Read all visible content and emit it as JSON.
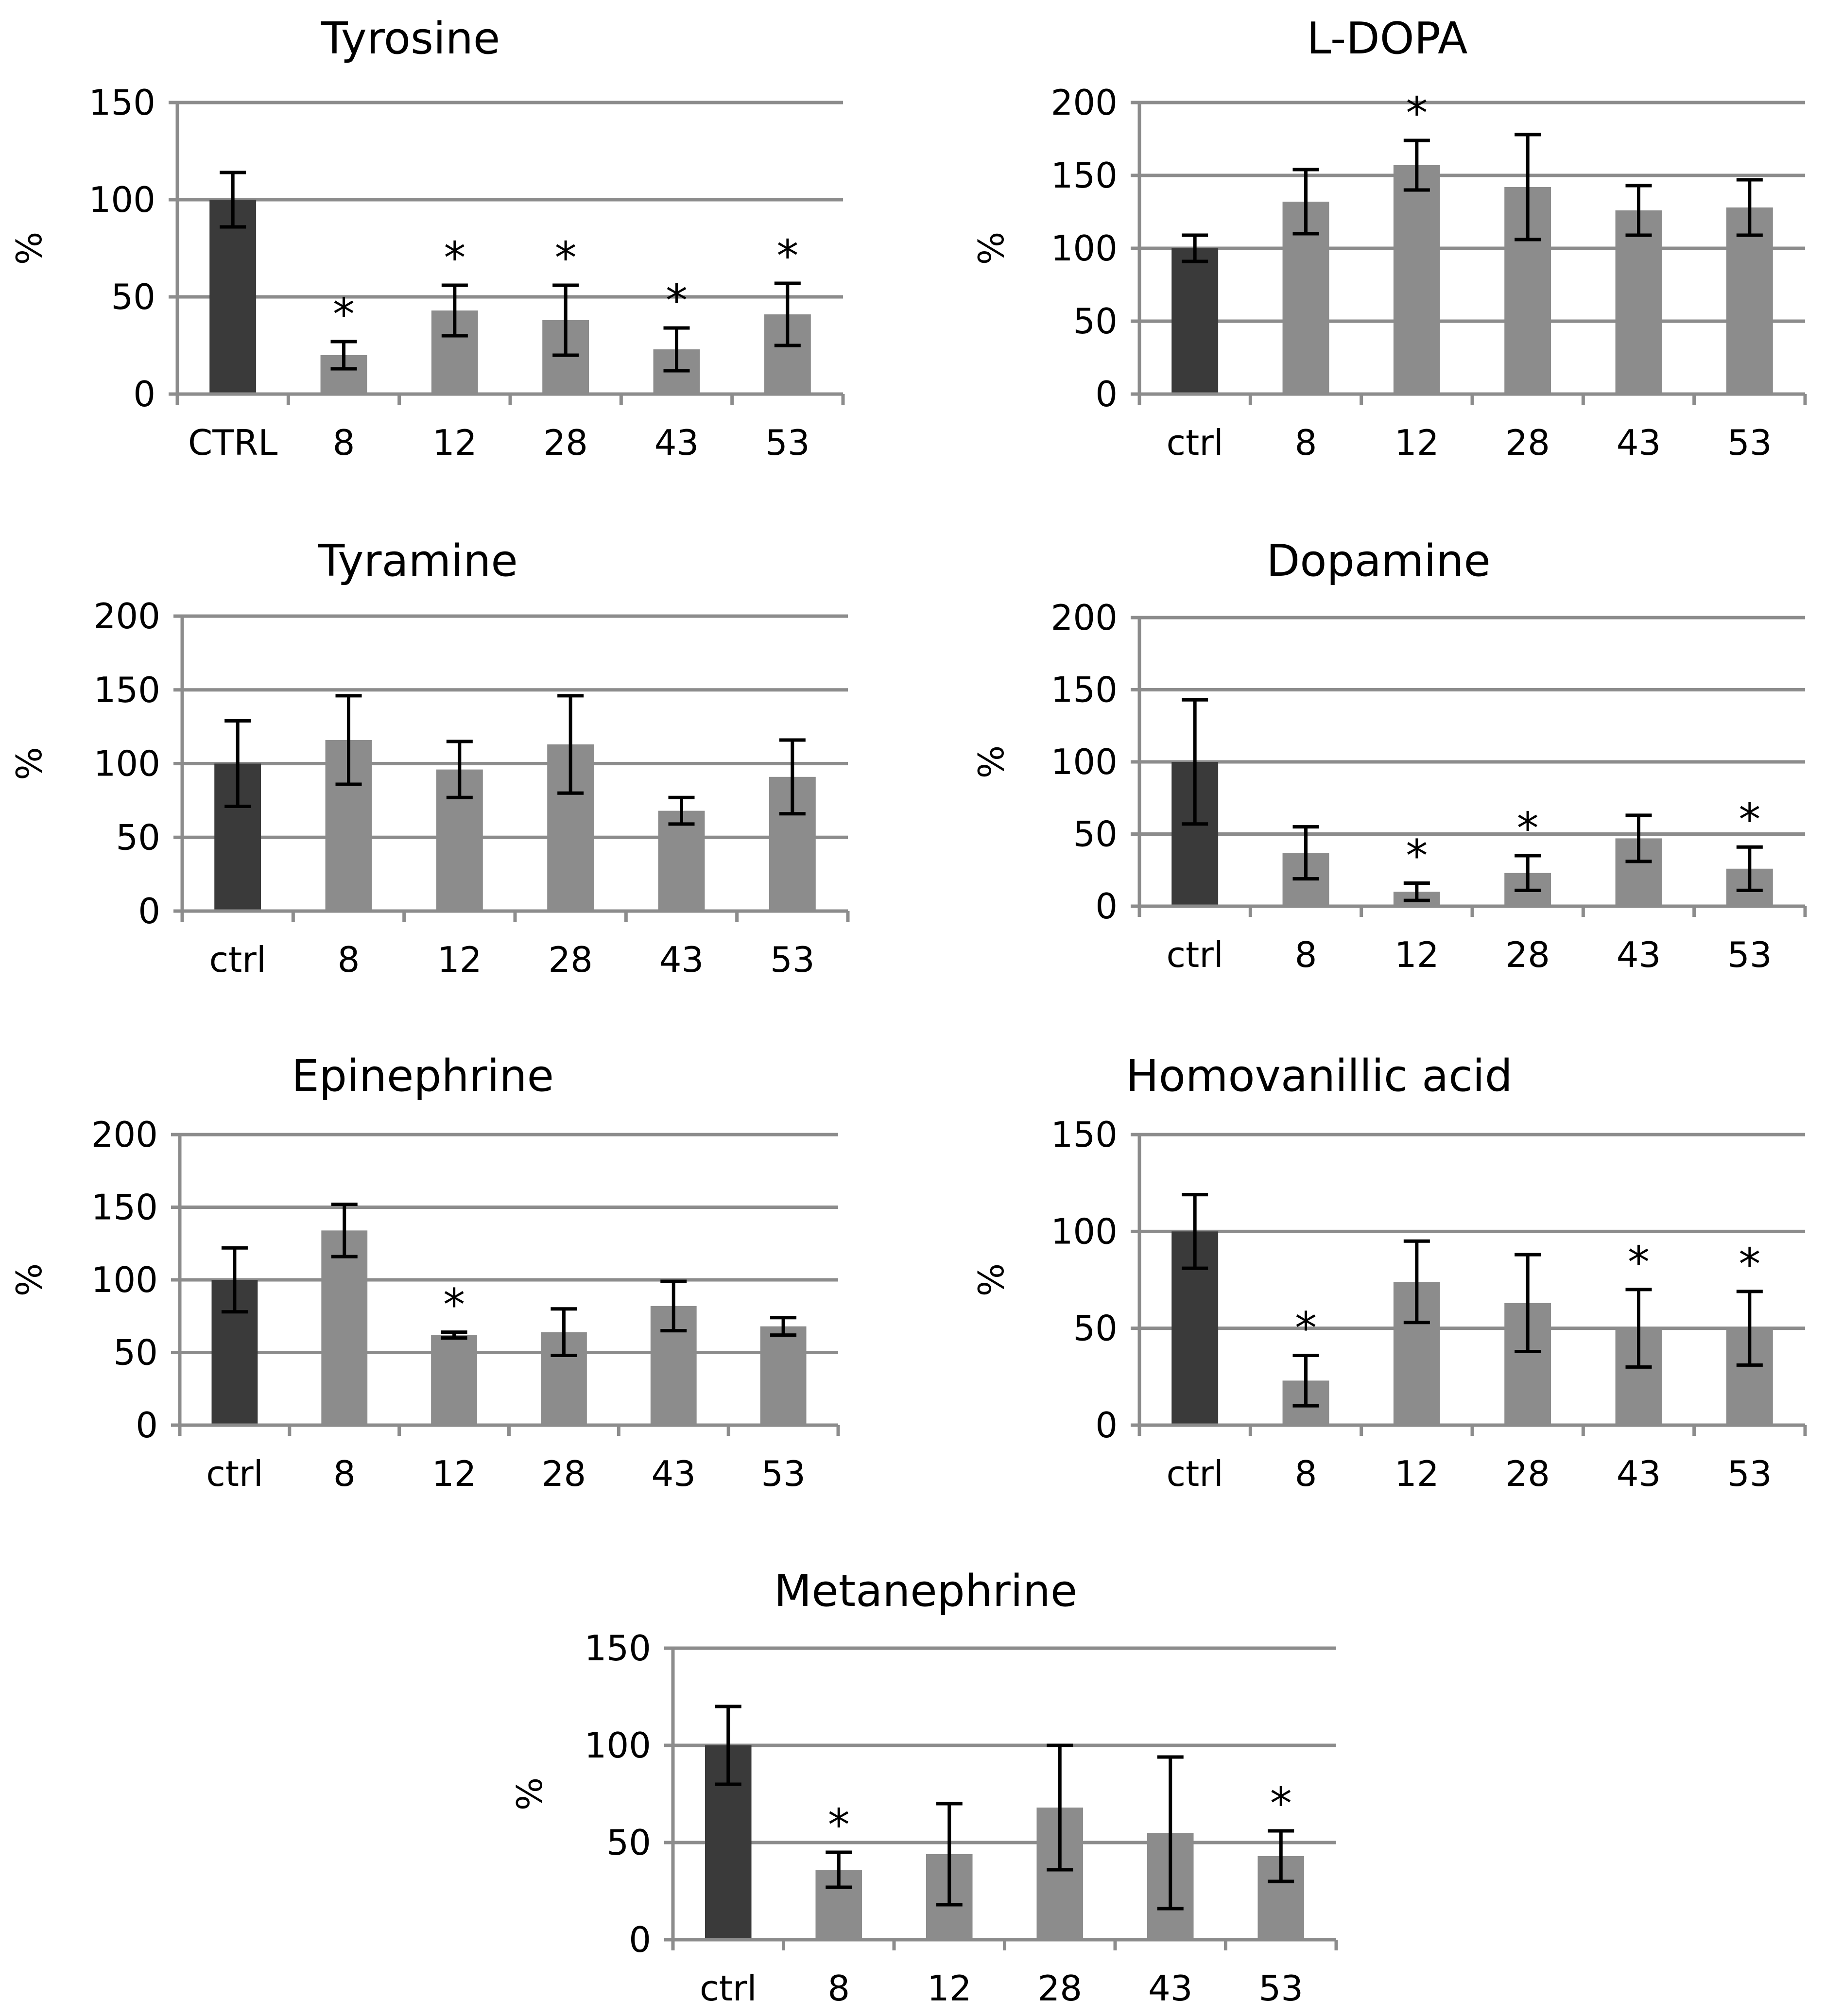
{
  "colors": {
    "control_bar": "#3a3a3a",
    "treatment_bar": "#8c8c8c",
    "gridline": "#8c8c8c",
    "error_bar": "#000000",
    "background": "#ffffff"
  },
  "chart_data": [
    {
      "type": "bar",
      "title": "Tyrosine",
      "ylabel": "%",
      "xlabel": "",
      "ylim": [
        0,
        150
      ],
      "yticks": [
        0,
        50,
        100,
        150
      ],
      "categories": [
        "CTRL",
        "8",
        "12",
        "28",
        "43",
        "53"
      ],
      "values": [
        100,
        20,
        43,
        38,
        23,
        41
      ],
      "errors": [
        14,
        7,
        13,
        18,
        11,
        16
      ],
      "significance": [
        "",
        "*",
        "*",
        "*",
        "*",
        "*"
      ]
    },
    {
      "type": "bar",
      "title": "L-DOPA",
      "ylabel": "%",
      "xlabel": "",
      "ylim": [
        0,
        200
      ],
      "yticks": [
        0,
        50,
        100,
        150,
        200
      ],
      "categories": [
        "ctrl",
        "8",
        "12",
        "28",
        "43",
        "53"
      ],
      "values": [
        100,
        132,
        157,
        142,
        126,
        128
      ],
      "errors": [
        9,
        22,
        17,
        36,
        17,
        19
      ],
      "significance": [
        "",
        "",
        "*",
        "",
        "",
        ""
      ]
    },
    {
      "type": "bar",
      "title": "Tyramine",
      "ylabel": "%",
      "xlabel": "",
      "ylim": [
        0,
        200
      ],
      "yticks": [
        0,
        50,
        100,
        150,
        200
      ],
      "categories": [
        "ctrl",
        "8",
        "12",
        "28",
        "43",
        "53"
      ],
      "values": [
        100,
        116,
        96,
        113,
        68,
        91
      ],
      "errors": [
        29,
        30,
        19,
        33,
        9,
        25
      ],
      "significance": [
        "",
        "",
        "",
        "",
        "",
        ""
      ]
    },
    {
      "type": "bar",
      "title": "Dopamine",
      "ylabel": "%",
      "xlabel": "",
      "ylim": [
        0,
        200
      ],
      "yticks": [
        0,
        50,
        100,
        150,
        200
      ],
      "categories": [
        "ctrl",
        "8",
        "12",
        "28",
        "43",
        "53"
      ],
      "values": [
        100,
        37,
        10,
        23,
        47,
        26
      ],
      "errors": [
        43,
        18,
        6,
        12,
        16,
        15
      ],
      "significance": [
        "",
        "",
        "*",
        "*",
        "",
        "*"
      ]
    },
    {
      "type": "bar",
      "title": "Epinephrine",
      "ylabel": "%",
      "xlabel": "",
      "ylim": [
        0,
        200
      ],
      "yticks": [
        0,
        50,
        100,
        150,
        200
      ],
      "categories": [
        "ctrl",
        "8",
        "12",
        "28",
        "43",
        "53"
      ],
      "values": [
        100,
        134,
        62,
        64,
        82,
        68
      ],
      "errors": [
        22,
        18,
        2,
        16,
        17,
        6
      ],
      "significance": [
        "",
        "",
        "*",
        "",
        "",
        ""
      ]
    },
    {
      "type": "bar",
      "title": "Homovanillic acid",
      "ylabel": "%",
      "xlabel": "",
      "ylim": [
        0,
        150
      ],
      "yticks": [
        0,
        50,
        100,
        150
      ],
      "categories": [
        "ctrl",
        "8",
        "12",
        "28",
        "43",
        "53"
      ],
      "values": [
        100,
        23,
        74,
        63,
        50,
        50
      ],
      "errors": [
        19,
        13,
        21,
        25,
        20,
        19
      ],
      "significance": [
        "",
        "*",
        "",
        "",
        "*",
        "*"
      ]
    },
    {
      "type": "bar",
      "title": "Metanephrine",
      "ylabel": "%",
      "xlabel": "",
      "ylim": [
        0,
        150
      ],
      "yticks": [
        0,
        50,
        100,
        150
      ],
      "categories": [
        "ctrl",
        "8",
        "12",
        "28",
        "43",
        "53"
      ],
      "values": [
        100,
        36,
        44,
        68,
        55,
        43
      ],
      "errors": [
        20,
        9,
        26,
        32,
        39,
        13
      ],
      "significance": [
        "",
        "*",
        "",
        "",
        "",
        "*"
      ]
    }
  ]
}
